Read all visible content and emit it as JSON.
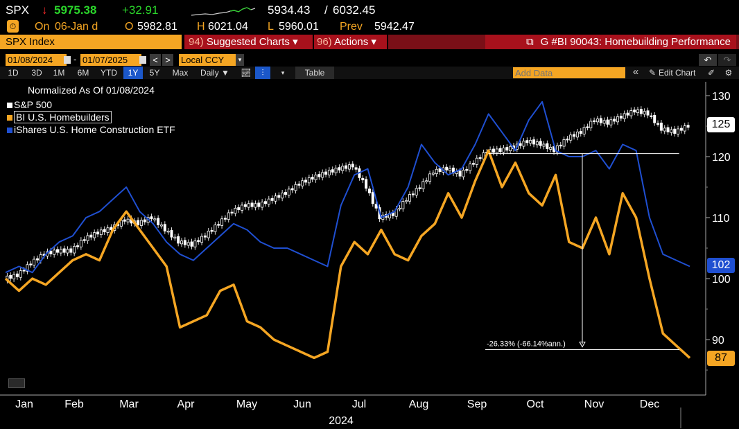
{
  "quote": {
    "ticker": "SPX",
    "arrow": "↓",
    "last": "5975.38",
    "change": "+32.91",
    "range_low": "5934.43",
    "range_sep": "/",
    "range_high": "6032.45",
    "on_label": "On",
    "on_date": "06-Jan d",
    "open_label": "O",
    "open": "5982.81",
    "high_label": "H",
    "high": "6021.04",
    "low_label": "L",
    "low": "5960.01",
    "prev_label": "Prev",
    "prev": "5942.47"
  },
  "menubar": {
    "security": "SPX Index",
    "suggested_num": "94)",
    "suggested_label": "Suggested Charts",
    "actions_num": "96)",
    "actions_label": "Actions",
    "caret": "▾",
    "chart_title": "G #BI 90043: Homebuilding Performance"
  },
  "toolbar": {
    "start_date": "01/08/2024",
    "date_dash": "-",
    "end_date": "01/07/2025",
    "prev_btn": "<",
    "next_btn": ">",
    "currency": "Local CCY",
    "periods": [
      "1D",
      "3D",
      "1M",
      "6M",
      "YTD",
      "1Y",
      "5Y",
      "Max"
    ],
    "active_period": "1Y",
    "frequency": "Daily ▼",
    "table_label": "Table",
    "add_data_placeholder": "Add Data",
    "collapse": "«",
    "edit_chart": "Edit Chart"
  },
  "legend": {
    "header": "Normalized As Of 01/08/2024",
    "items": [
      {
        "name": "S&P 500",
        "color": "#ffffff"
      },
      {
        "name": "BI U.S. Homebuilders",
        "color": "#f5a623"
      },
      {
        "name": "iShares U.S. Home Construction ETF",
        "color": "#1f4fd1"
      }
    ]
  },
  "annotation": {
    "drawdown_text": "-26.33% (-66.14%ann.)"
  },
  "badges": {
    "spx": "125",
    "etf": "102",
    "hb": "87"
  },
  "chart_data": {
    "type": "line",
    "title": "G #BI 90043: Homebuilding Performance",
    "subtitle": "Normalized As Of 01/08/2024",
    "year_label": "2024",
    "x_tick_labels": [
      "Jan",
      "Feb",
      "Mar",
      "Apr",
      "May",
      "Jun",
      "Jul",
      "Aug",
      "Sep",
      "Oct",
      "Nov",
      "Dec"
    ],
    "y_ticks": [
      90,
      100,
      110,
      120,
      130
    ],
    "ylim": [
      83,
      132
    ],
    "xlim": [
      0,
      52
    ],
    "series": [
      {
        "name": "S&P 500",
        "color": "#ffffff",
        "style": "candles",
        "x": [
          0,
          1,
          2,
          3,
          4,
          5,
          6,
          7,
          8,
          9,
          10,
          11,
          12,
          13,
          14,
          15,
          16,
          17,
          18,
          19,
          20,
          21,
          22,
          23,
          24,
          25,
          26,
          27,
          28,
          29,
          30,
          31,
          32,
          33,
          34,
          35,
          36,
          37,
          38,
          39,
          40,
          41,
          42,
          43,
          44,
          45,
          46,
          47,
          48,
          49,
          50,
          51
        ],
        "values": [
          100,
          100.5,
          102.5,
          104,
          104.5,
          104.5,
          106.5,
          107.5,
          108.2,
          109.6,
          109,
          110,
          108,
          106,
          105.5,
          107,
          109,
          111,
          112,
          112,
          113,
          114,
          115.5,
          116.5,
          117.3,
          118,
          118.5,
          115,
          110,
          110.5,
          113,
          115,
          117.5,
          118,
          117,
          119,
          120.8,
          121,
          121.5,
          122.5,
          122,
          121,
          123,
          124,
          126,
          125.5,
          126.5,
          127.5,
          127,
          124.5,
          124,
          125
        ]
      },
      {
        "name": "BI U.S. Homebuilders",
        "color": "#f5a623",
        "x": [
          0,
          1,
          2,
          3,
          4,
          5,
          6,
          7,
          8,
          9,
          10,
          11,
          12,
          13,
          14,
          15,
          16,
          17,
          18,
          19,
          20,
          21,
          22,
          23,
          24,
          25,
          26,
          27,
          28,
          29,
          30,
          31,
          32,
          33,
          34,
          35,
          36,
          37,
          38,
          39,
          40,
          41,
          42,
          43,
          44,
          45,
          46,
          47,
          48,
          49,
          50,
          51
        ],
        "values": [
          100,
          98,
          100,
          99,
          101,
          103,
          104,
          103,
          108,
          111,
          108,
          105,
          102,
          92,
          93,
          94,
          98,
          99,
          93,
          92,
          90,
          89,
          88,
          87,
          88,
          102,
          106,
          104,
          108,
          104,
          103,
          107,
          109,
          114,
          110,
          116,
          121,
          115,
          119,
          114,
          112,
          117,
          106,
          105,
          110,
          104,
          114,
          110,
          100,
          91,
          89,
          87
        ]
      },
      {
        "name": "iShares U.S. Home Construction ETF",
        "color": "#1f4fd1",
        "x": [
          0,
          1,
          2,
          3,
          4,
          5,
          6,
          7,
          8,
          9,
          10,
          11,
          12,
          13,
          14,
          15,
          16,
          17,
          18,
          19,
          20,
          21,
          22,
          23,
          24,
          25,
          26,
          27,
          28,
          29,
          30,
          31,
          32,
          33,
          34,
          35,
          36,
          37,
          38,
          39,
          40,
          41,
          42,
          43,
          44,
          45,
          46,
          47,
          48,
          49,
          50,
          51
        ],
        "values": [
          101,
          102,
          101,
          104,
          106,
          107,
          110,
          111,
          113,
          115,
          111,
          109,
          106,
          104,
          103,
          105,
          107,
          109,
          108,
          106,
          105,
          105,
          104,
          103,
          102,
          112,
          117,
          118,
          110,
          111,
          115,
          122,
          119,
          117,
          118,
          122,
          127,
          124,
          121,
          126,
          129,
          121,
          120,
          120,
          121,
          118,
          122,
          121,
          110,
          104,
          103,
          102
        ]
      }
    ],
    "annotation_line": {
      "level": 120.5,
      "x_start": 36,
      "x_end": 50
    },
    "drawdown": {
      "text": "-26.33% (-66.14%ann.)",
      "from": 120.5,
      "to": 88.8
    }
  }
}
